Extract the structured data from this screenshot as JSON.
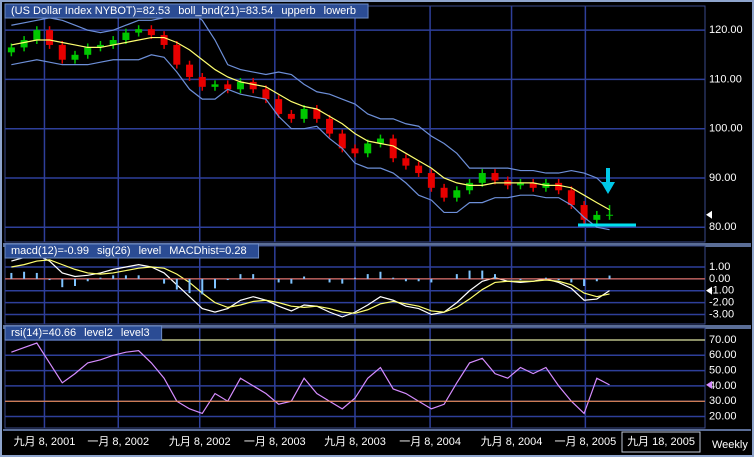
{
  "x_axis": {
    "xlim": [
      -0.5,
      54.5
    ],
    "xticks": [
      {
        "value": 2.6,
        "label": "九月 8, 2001"
      },
      {
        "value": 8.4,
        "label": "一月 8, 2002"
      },
      {
        "value": 14.8,
        "label": "九月 8, 2002"
      },
      {
        "value": 20.7,
        "label": "一月 8, 2003"
      },
      {
        "value": 27,
        "label": "九月 8, 2003"
      },
      {
        "value": 32.9,
        "label": "一月 8, 2004"
      },
      {
        "value": 39.3,
        "label": "九月 8, 2004"
      },
      {
        "value": 45.1,
        "label": "一月 8, 2005"
      }
    ],
    "cursor_date": "九月 18, 2005",
    "period": "Weekly"
  },
  "chart_data": [
    {
      "type": "candlestick",
      "ylim": [
        77,
        124.5
      ],
      "yticks": [
        {
          "value": 80,
          "label": "80.00"
        },
        {
          "value": 90,
          "label": "90.00"
        },
        {
          "value": 100,
          "label": "100.00"
        },
        {
          "value": 110,
          "label": "110.00"
        },
        {
          "value": 120,
          "label": "120.00"
        }
      ],
      "series": [
        {
          "name": "(US Dollar Index NYBOT)=82.53",
          "style": "candle",
          "color": "#ffffff",
          "up_color": "#00c800",
          "down_color": "#e80000",
          "open": [
            115.5,
            116.5,
            118,
            120,
            117,
            114,
            115,
            116.5,
            117,
            118,
            119.5,
            120.2,
            119,
            117,
            113,
            110.5,
            108.5,
            109,
            108,
            109.5,
            108,
            106,
            103,
            102,
            104,
            102,
            99,
            96,
            95,
            97,
            98,
            94,
            92.5,
            91,
            88,
            86,
            87.5,
            89,
            91,
            89.5,
            88.5,
            89,
            88,
            89,
            87.5,
            84.5,
            81.5,
            82.5
          ],
          "high": [
            117.3,
            118.8,
            120.8,
            120.8,
            117.8,
            115.8,
            117.3,
            117.8,
            118.8,
            120.3,
            121,
            121,
            119.8,
            117.8,
            113.8,
            111.3,
            109.8,
            109.8,
            110.3,
            110.3,
            108.8,
            106.8,
            103.8,
            104.8,
            104.8,
            102.8,
            99.8,
            96.8,
            97.8,
            98.8,
            98.8,
            94.8,
            93.3,
            91.8,
            88.8,
            88.3,
            89.8,
            91.8,
            91.8,
            90.3,
            89.8,
            89.8,
            89.8,
            89.8,
            88.3,
            85.3,
            83.3,
            84.5
          ],
          "low": [
            114.7,
            115.7,
            117.2,
            116.2,
            113.2,
            113.2,
            114.2,
            115.7,
            116.2,
            117.2,
            118.7,
            118.2,
            116.2,
            112.2,
            109.7,
            107.7,
            107.7,
            107.2,
            107.2,
            107.2,
            105.2,
            102.2,
            101.2,
            101.2,
            101.2,
            98.2,
            95.2,
            94.2,
            94.2,
            96.2,
            93.2,
            91.7,
            90.2,
            87.2,
            85.2,
            85.2,
            86.7,
            88.2,
            88.7,
            87.7,
            87.7,
            87.2,
            87.2,
            86.7,
            83.7,
            80.7,
            80.7,
            81.5
          ],
          "close": [
            116.5,
            118,
            120,
            117,
            114,
            115,
            116.5,
            117,
            118,
            119.5,
            120.2,
            119,
            117,
            113,
            110.5,
            108.5,
            109,
            108,
            109.5,
            108,
            106,
            103,
            102,
            104,
            102,
            99,
            96,
            95,
            97,
            98,
            94,
            92.5,
            91,
            88,
            86,
            87.5,
            89,
            91,
            89.5,
            88.5,
            89,
            88,
            89,
            87.5,
            84.5,
            81.5,
            82.5,
            82.53
          ]
        },
        {
          "name": "boll_bnd(21)=83.54",
          "style": "line",
          "color": "#ffff70",
          "values": [
            117,
            117.5,
            118,
            118,
            117.5,
            117,
            116.5,
            116.5,
            117,
            117.5,
            118,
            118.5,
            118.5,
            117.5,
            116,
            114,
            112,
            110.5,
            109.5,
            109,
            108.5,
            107,
            105.5,
            104.5,
            104,
            102.5,
            101,
            99,
            97.5,
            97,
            96.5,
            95,
            93.5,
            92,
            90,
            89,
            88.5,
            88.5,
            89,
            89,
            89,
            89,
            88.5,
            88.5,
            88,
            86.5,
            85,
            83.54
          ]
        },
        {
          "name": "upperb",
          "style": "line",
          "color": "#6d8fd8",
          "values": [
            121,
            121.5,
            122,
            122.5,
            122,
            121,
            120,
            119.5,
            120,
            121,
            122,
            122,
            122.5,
            123.5,
            124,
            122,
            118,
            113,
            112,
            111.5,
            111,
            111.5,
            111,
            109,
            107.5,
            107,
            106,
            105,
            103,
            102,
            102,
            101,
            100.5,
            98.5,
            97,
            95,
            92,
            92,
            92,
            92,
            91.5,
            91.5,
            91,
            91,
            91.5,
            91,
            90,
            87.5
          ]
        },
        {
          "name": "lowerb",
          "style": "line",
          "color": "#6d8fd8",
          "values": [
            113,
            113.5,
            114,
            113.5,
            113,
            113,
            113,
            113.5,
            114,
            114,
            114,
            115,
            114.5,
            111.5,
            108,
            106,
            106,
            108,
            107,
            106.5,
            106,
            102.5,
            100,
            100,
            100.5,
            98,
            96,
            93,
            92,
            92,
            91,
            89,
            86.5,
            85.5,
            83,
            83,
            85,
            85,
            86,
            86,
            86.5,
            86.5,
            86,
            86,
            84.5,
            82,
            80,
            79.5
          ]
        }
      ]
    },
    {
      "type": "line",
      "ylim": [
        -3.8,
        2.6
      ],
      "yticks": [
        {
          "value": -3,
          "label": "-3.00"
        },
        {
          "value": -2,
          "label": "-2.00"
        },
        {
          "value": -1,
          "label": "-1.00"
        },
        {
          "value": 0,
          "label": "0.00"
        },
        {
          "value": 1,
          "label": "1.00"
        }
      ],
      "series": [
        {
          "name": "macd(12)=-0.99",
          "style": "line",
          "color": "#ffffff",
          "values": [
            1.5,
            1.8,
            2.0,
            1.5,
            0.5,
            0.2,
            0.3,
            0.5,
            0.8,
            1.0,
            1.2,
            1.0,
            0.5,
            -0.5,
            -1.5,
            -2.5,
            -2.8,
            -2.5,
            -1.8,
            -1.5,
            -1.8,
            -2.3,
            -2.7,
            -2.2,
            -2.3,
            -2.8,
            -3.2,
            -2.8,
            -2.2,
            -1.5,
            -1.8,
            -2.3,
            -2.5,
            -3.0,
            -2.8,
            -2.0,
            -1.0,
            -0.2,
            0.1,
            -0.2,
            -0.3,
            -0.2,
            0.0,
            -0.3,
            -0.8,
            -1.8,
            -1.7,
            -0.99
          ]
        },
        {
          "name": "sig(26)",
          "style": "line",
          "color": "#ffff70",
          "values": [
            1.0,
            1.2,
            1.5,
            1.6,
            1.2,
            0.8,
            0.5,
            0.4,
            0.5,
            0.7,
            0.9,
            1.0,
            0.9,
            0.4,
            -0.3,
            -1.2,
            -2.0,
            -2.4,
            -2.2,
            -1.9,
            -1.8,
            -2.0,
            -2.3,
            -2.4,
            -2.3,
            -2.5,
            -2.8,
            -2.9,
            -2.6,
            -2.1,
            -1.9,
            -2.1,
            -2.3,
            -2.7,
            -2.8,
            -2.4,
            -1.7,
            -0.9,
            -0.3,
            -0.2,
            -0.2,
            -0.2,
            -0.1,
            -0.2,
            -0.5,
            -1.2,
            -1.5,
            -1.27
          ]
        },
        {
          "name": "level",
          "style": "level",
          "color": "#ff7040",
          "value": 0
        },
        {
          "name": "MACDhist=0.28",
          "style": "bar",
          "color": "#7fc4ff",
          "values": [
            0.5,
            0.6,
            0.5,
            -0.1,
            -0.7,
            -0.6,
            -0.2,
            0.1,
            0.3,
            0.3,
            0.3,
            0,
            -0.4,
            -0.9,
            -1.2,
            -1.3,
            -0.8,
            -0.1,
            0.4,
            0.4,
            0,
            -0.3,
            -0.4,
            0.2,
            0,
            -0.3,
            -0.4,
            0.1,
            0.4,
            0.6,
            0.1,
            -0.2,
            -0.2,
            -0.3,
            0,
            0.4,
            0.7,
            0.7,
            0.4,
            0,
            -0.1,
            0,
            0.1,
            -0.1,
            -0.3,
            -0.6,
            -0.2,
            0.28
          ]
        }
      ]
    },
    {
      "type": "line",
      "ylim": [
        12.5,
        76.5
      ],
      "yticks": [
        {
          "value": 20,
          "label": "20.00"
        },
        {
          "value": 30,
          "label": "30.00"
        },
        {
          "value": 40,
          "label": "40.00"
        },
        {
          "value": 50,
          "label": "50.00"
        },
        {
          "value": 60,
          "label": "60.00"
        },
        {
          "value": 70,
          "label": "70.00"
        }
      ],
      "series": [
        {
          "name": "rsi(14)=40.66",
          "style": "line",
          "color": "#d58cff",
          "values": [
            62,
            65,
            68,
            55,
            42,
            48,
            55,
            57,
            60,
            62,
            63,
            55,
            45,
            30,
            25,
            22,
            35,
            30,
            45,
            40,
            35,
            28,
            30,
            45,
            35,
            30,
            25,
            32,
            45,
            52,
            38,
            35,
            30,
            25,
            28,
            42,
            55,
            58,
            48,
            45,
            52,
            48,
            52,
            40,
            30,
            22,
            45,
            40.66
          ]
        },
        {
          "name": "level2",
          "style": "level",
          "color": "#ffff80",
          "value": 70
        },
        {
          "name": "level3",
          "style": "level",
          "color": "#ff9040",
          "value": 30
        }
      ]
    }
  ]
}
